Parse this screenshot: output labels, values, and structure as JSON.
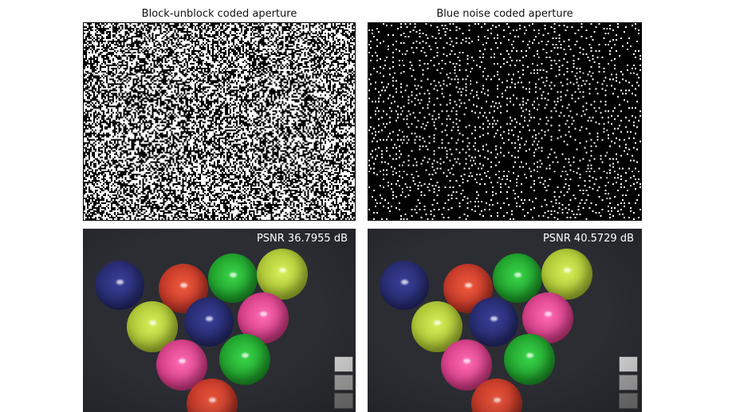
{
  "panels": {
    "top_left": {
      "title": "Block-unblock coded aperture",
      "pattern": "random-binary"
    },
    "top_right": {
      "title": "Blue noise coded aperture",
      "pattern": "blue-noise"
    },
    "bottom_left": {
      "psnr_label": "PSNR 36.7955 dB"
    },
    "bottom_right": {
      "psnr_label": "PSNR 40.5729 dB"
    }
  },
  "colors": {
    "ball_blue": "#2a2f7a",
    "ball_red": "#e0402c",
    "ball_green": "#1fbf2a",
    "ball_yellowgreen": "#c4e03a",
    "ball_pink": "#f0449a",
    "background": "#2b2d33"
  }
}
